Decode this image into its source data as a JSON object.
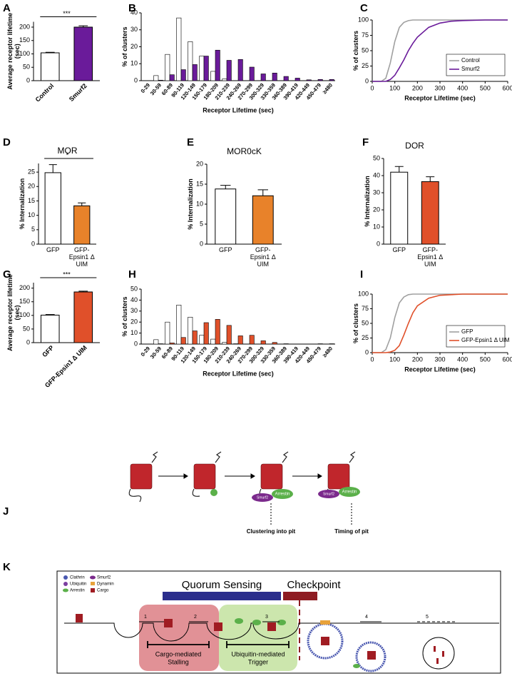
{
  "panel_labels": [
    "A",
    "B",
    "C",
    "D",
    "E",
    "F",
    "G",
    "H",
    "I",
    "J",
    "K"
  ],
  "chart_data": [
    {
      "type": "bar",
      "categories": [
        "Control",
        "Smurf2"
      ],
      "values": [
        104,
        200
      ],
      "errors": [
        2,
        5
      ],
      "colors": [
        "#ffffff",
        "#6a1b9a"
      ],
      "ylabel": "Average receptor lifetime (sec)",
      "ylim": [
        0,
        220
      ],
      "yticks": [
        0,
        50,
        100,
        150,
        200
      ],
      "significance": "***"
    },
    {
      "type": "bar",
      "categories": [
        "0-29",
        "30-59",
        "60-89",
        "90-119",
        "120-149",
        "150-179",
        "180-209",
        "210-239",
        "240-269",
        "270-299",
        "300-329",
        "330-359",
        "360-389",
        "390-419",
        "420-449",
        "450-479",
        "≥480"
      ],
      "series": [
        {
          "color": "#ffffff",
          "values": [
            0,
            3,
            15.5,
            37,
            23,
            14.5,
            5.5,
            1,
            0,
            0,
            0,
            0,
            0,
            0,
            0,
            0,
            0
          ]
        },
        {
          "color": "#6a1b9a",
          "values": [
            0,
            0.3,
            3.5,
            6.5,
            9.5,
            14.5,
            18,
            12,
            12.5,
            8,
            4,
            4.5,
            2.5,
            1.5,
            0.5,
            0.7,
            0.7
          ]
        }
      ],
      "xlabel": "Receptor Lifetime (sec)",
      "ylabel": "% of clusters",
      "ylim": [
        0,
        40
      ],
      "yticks": [
        0,
        10,
        20,
        30,
        40
      ]
    },
    {
      "type": "line",
      "x": [
        0,
        40,
        60,
        80,
        100,
        120,
        140,
        160,
        180,
        200,
        250,
        300,
        350,
        400,
        500,
        600
      ],
      "series": [
        {
          "name": "Control",
          "color": "#a0a0a0",
          "values": [
            0,
            0,
            5,
            30,
            65,
            88,
            96,
            99,
            100,
            100,
            100,
            100,
            100,
            100,
            100,
            100
          ]
        },
        {
          "name": "Smurf2",
          "color": "#6a1b9a",
          "values": [
            0,
            0,
            0,
            3,
            10,
            22,
            35,
            50,
            62,
            72,
            88,
            95,
            98,
            99,
            100,
            100
          ]
        }
      ],
      "xlabel": "Receptor Lifetime (sec)",
      "ylabel": "% of clusters",
      "xlim": [
        0,
        600
      ],
      "xticks": [
        0,
        100,
        200,
        300,
        400,
        500,
        600
      ],
      "ylim": [
        0,
        100
      ],
      "yticks": [
        0,
        25,
        50,
        75,
        100
      ],
      "legend": "lower right"
    },
    {
      "type": "bar",
      "title": "MOR",
      "categories": [
        "GFP",
        "GFP-Epsin1 Δ UIM"
      ],
      "values": [
        24.8,
        13.3
      ],
      "errors": [
        2.8,
        1
      ],
      "colors": [
        "#ffffff",
        "#e8822a"
      ],
      "ylabel": "% Internalization",
      "ylim": [
        0,
        28
      ],
      "yticks": [
        0,
        5,
        10,
        15,
        20,
        25
      ],
      "significance": "*"
    },
    {
      "type": "bar",
      "title": "MOR0cK",
      "categories": [
        "GFP",
        "GFP-Epsin1 Δ UIM"
      ],
      "values": [
        13.8,
        12.1
      ],
      "errors": [
        0.9,
        1.5
      ],
      "colors": [
        "#ffffff",
        "#e8822a"
      ],
      "ylabel": "% Internalization",
      "ylim": [
        0,
        20
      ],
      "yticks": [
        0,
        5,
        10,
        15,
        20
      ]
    },
    {
      "type": "bar",
      "title": "DOR",
      "categories": [
        "GFP",
        "GFP-Epsin1 Δ UIM"
      ],
      "values": [
        42,
        36.5
      ],
      "errors": [
        3.3,
        2.8
      ],
      "colors": [
        "#ffffff",
        "#e0502a"
      ],
      "ylabel": "% Internalization",
      "ylim": [
        0,
        50
      ],
      "yticks": [
        0,
        10,
        20,
        30,
        40,
        50
      ]
    },
    {
      "type": "bar",
      "categories": [
        "GFP",
        "GFP-Epsin1 Δ UIM"
      ],
      "values": [
        101,
        186
      ],
      "errors": [
        2,
        3
      ],
      "colors": [
        "#ffffff",
        "#e0502a"
      ],
      "ylabel": "Average receptor lifetime (sec)",
      "ylim": [
        0,
        220
      ],
      "yticks": [
        0,
        50,
        100,
        150,
        200
      ],
      "significance": "***"
    },
    {
      "type": "bar",
      "categories": [
        "0-29",
        "30-59",
        "60-89",
        "90-119",
        "120-149",
        "150-179",
        "180-209",
        "210-239",
        "240-269",
        "270-299",
        "300-329",
        "330-359",
        "360-389",
        "390-419",
        "420-449",
        "450-479",
        "≥480"
      ],
      "series": [
        {
          "color": "#ffffff",
          "values": [
            0,
            4,
            20,
            35.5,
            24.5,
            8,
            4.5,
            1.5,
            0.3,
            0,
            0,
            0,
            0,
            0,
            0,
            0,
            0
          ]
        },
        {
          "color": "#e0502a",
          "values": [
            0,
            0.3,
            1,
            6,
            12,
            19.5,
            22.5,
            17,
            7.5,
            8,
            3,
            1.5,
            0.3,
            0,
            0,
            0.3,
            0.3
          ]
        }
      ],
      "xlabel": "Receptor Lifetime (sec)",
      "ylabel": "% of clusters",
      "ylim": [
        0,
        50
      ],
      "yticks": [
        0,
        10,
        20,
        30,
        40,
        50
      ]
    },
    {
      "type": "line",
      "x": [
        0,
        40,
        60,
        80,
        100,
        120,
        140,
        160,
        180,
        200,
        250,
        300,
        350,
        400,
        500,
        600
      ],
      "series": [
        {
          "name": "GFP",
          "color": "#a0a0a0",
          "values": [
            0,
            0,
            5,
            25,
            60,
            85,
            95,
            99,
            100,
            100,
            100,
            100,
            100,
            100,
            100,
            100
          ]
        },
        {
          "name": "GFP-Epsin1 Δ UIM",
          "color": "#e0502a",
          "values": [
            0,
            0,
            0,
            1,
            4,
            12,
            30,
            50,
            68,
            80,
            93,
            98,
            99,
            100,
            100,
            100
          ]
        }
      ],
      "xlabel": "Receptor Lifetime (sec)",
      "ylabel": "% of clusters",
      "xlim": [
        0,
        600
      ],
      "xticks": [
        0,
        100,
        200,
        300,
        400,
        500,
        600
      ],
      "ylim": [
        0,
        100
      ],
      "yticks": [
        0,
        25,
        50,
        75,
        100
      ],
      "legend": "lower right"
    }
  ],
  "diagram_j": {
    "labels": [
      "Smurf2",
      "Arrestin",
      "Clustering into pit",
      "Smurf2",
      "Arrestin",
      "Timing of pit"
    ]
  },
  "diagram_k": {
    "legend": [
      "Clathrin",
      "Ubiquitin",
      "Arrestin",
      "Smurf2",
      "Dynamin",
      "Cargo"
    ],
    "quorum": "Quorum Sensing",
    "checkpoint": "Checkpoint",
    "steps": [
      "1",
      "2",
      "3",
      "4",
      "5"
    ],
    "stalling": [
      "Cargo-mediated",
      "Stalling"
    ],
    "trigger": [
      "Ubiquitin-mediated",
      "Trigger"
    ]
  }
}
